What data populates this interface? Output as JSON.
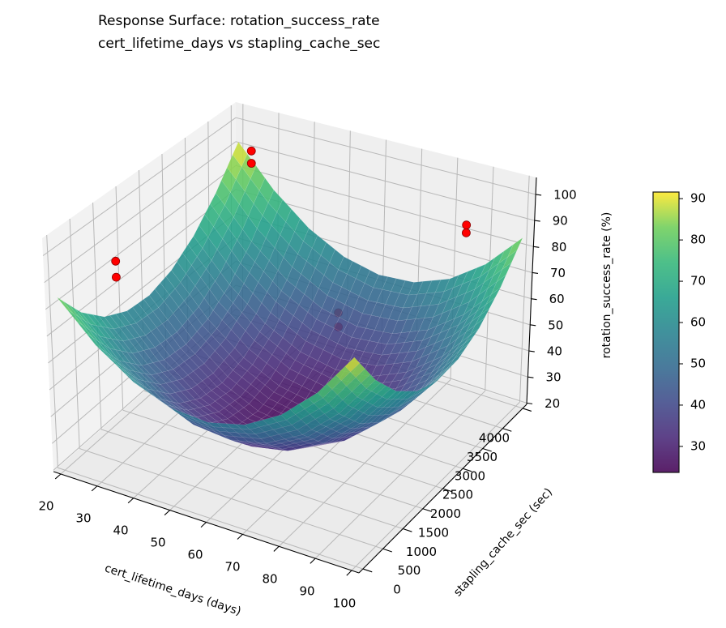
{
  "chart_data": {
    "type": "surface",
    "title": [
      "Response Surface: rotation_success_rate",
      "cert_lifetime_days vs stapling_cache_sec"
    ],
    "xlabel": "cert_lifetime_days (days)",
    "ylabel": "stapling_cache_sec (sec)",
    "zlabel": "rotation_success_rate (%)",
    "xlim": [
      18,
      102
    ],
    "ylim": [
      -100,
      4100
    ],
    "zlim": [
      19.5,
      106.5
    ],
    "xticks": [
      20,
      30,
      40,
      50,
      60,
      70,
      80,
      90,
      100
    ],
    "yticks": [
      0,
      500,
      1000,
      1500,
      2000,
      2500,
      3000,
      3500,
      4000
    ],
    "zticks": [
      20,
      30,
      40,
      50,
      60,
      70,
      80,
      90,
      100
    ],
    "grid": true,
    "colormap": "viridis",
    "surface": {
      "x": [
        20,
        30,
        40,
        50,
        60,
        70,
        80,
        90,
        100
      ],
      "y": [
        0,
        500,
        1000,
        1500,
        2000,
        2500,
        3000,
        3500,
        4000
      ],
      "z": [
        [
          84,
          70.1,
          60.5,
          55.1,
          54,
          57.1,
          64.5,
          76.1,
          92
        ],
        [
          71.9,
          57.8,
          47.9,
          42.3,
          40.9,
          43.8,
          50.9,
          62.3,
          77.9
        ],
        [
          63.5,
          49.1,
          39,
          33.1,
          31.5,
          34.1,
          41,
          52.1,
          67.5
        ],
        [
          58.9,
          44.3,
          33.9,
          27.8,
          25.9,
          28.3,
          34.9,
          45.8,
          60.9
        ],
        [
          58,
          43.1,
          32.5,
          26.1,
          24,
          26.1,
          32.5,
          43.1,
          58
        ],
        [
          60.9,
          45.8,
          34.9,
          28.3,
          25.9,
          27.8,
          33.9,
          44.3,
          58.9
        ],
        [
          67.5,
          52.1,
          41,
          34.1,
          31.5,
          33.1,
          39,
          49.1,
          63.5
        ],
        [
          77.9,
          62.3,
          50.9,
          43.8,
          40.9,
          42.3,
          47.9,
          57.8,
          71.9
        ],
        [
          92,
          76.1,
          64.5,
          57.1,
          54,
          55.1,
          60.5,
          70.1,
          84
        ]
      ]
    },
    "points": {
      "color": "#ff0000",
      "edge_color": "#8b0000",
      "data": [
        {
          "x": 90,
          "y": 500,
          "z": 98
        },
        {
          "x": 90,
          "y": 500,
          "z": 93
        },
        {
          "x": 30,
          "y": 500,
          "z": 95
        },
        {
          "x": 30,
          "y": 500,
          "z": 89
        },
        {
          "x": 30,
          "y": 3500,
          "z": 99
        },
        {
          "x": 30,
          "y": 3500,
          "z": 94
        },
        {
          "x": 90,
          "y": 3500,
          "z": 92
        },
        {
          "x": 90,
          "y": 3500,
          "z": 89
        }
      ]
    },
    "colorbar": {
      "range": [
        23.7,
        91.6
      ],
      "ticks": [
        30,
        40,
        50,
        60,
        70,
        80,
        90
      ]
    }
  }
}
